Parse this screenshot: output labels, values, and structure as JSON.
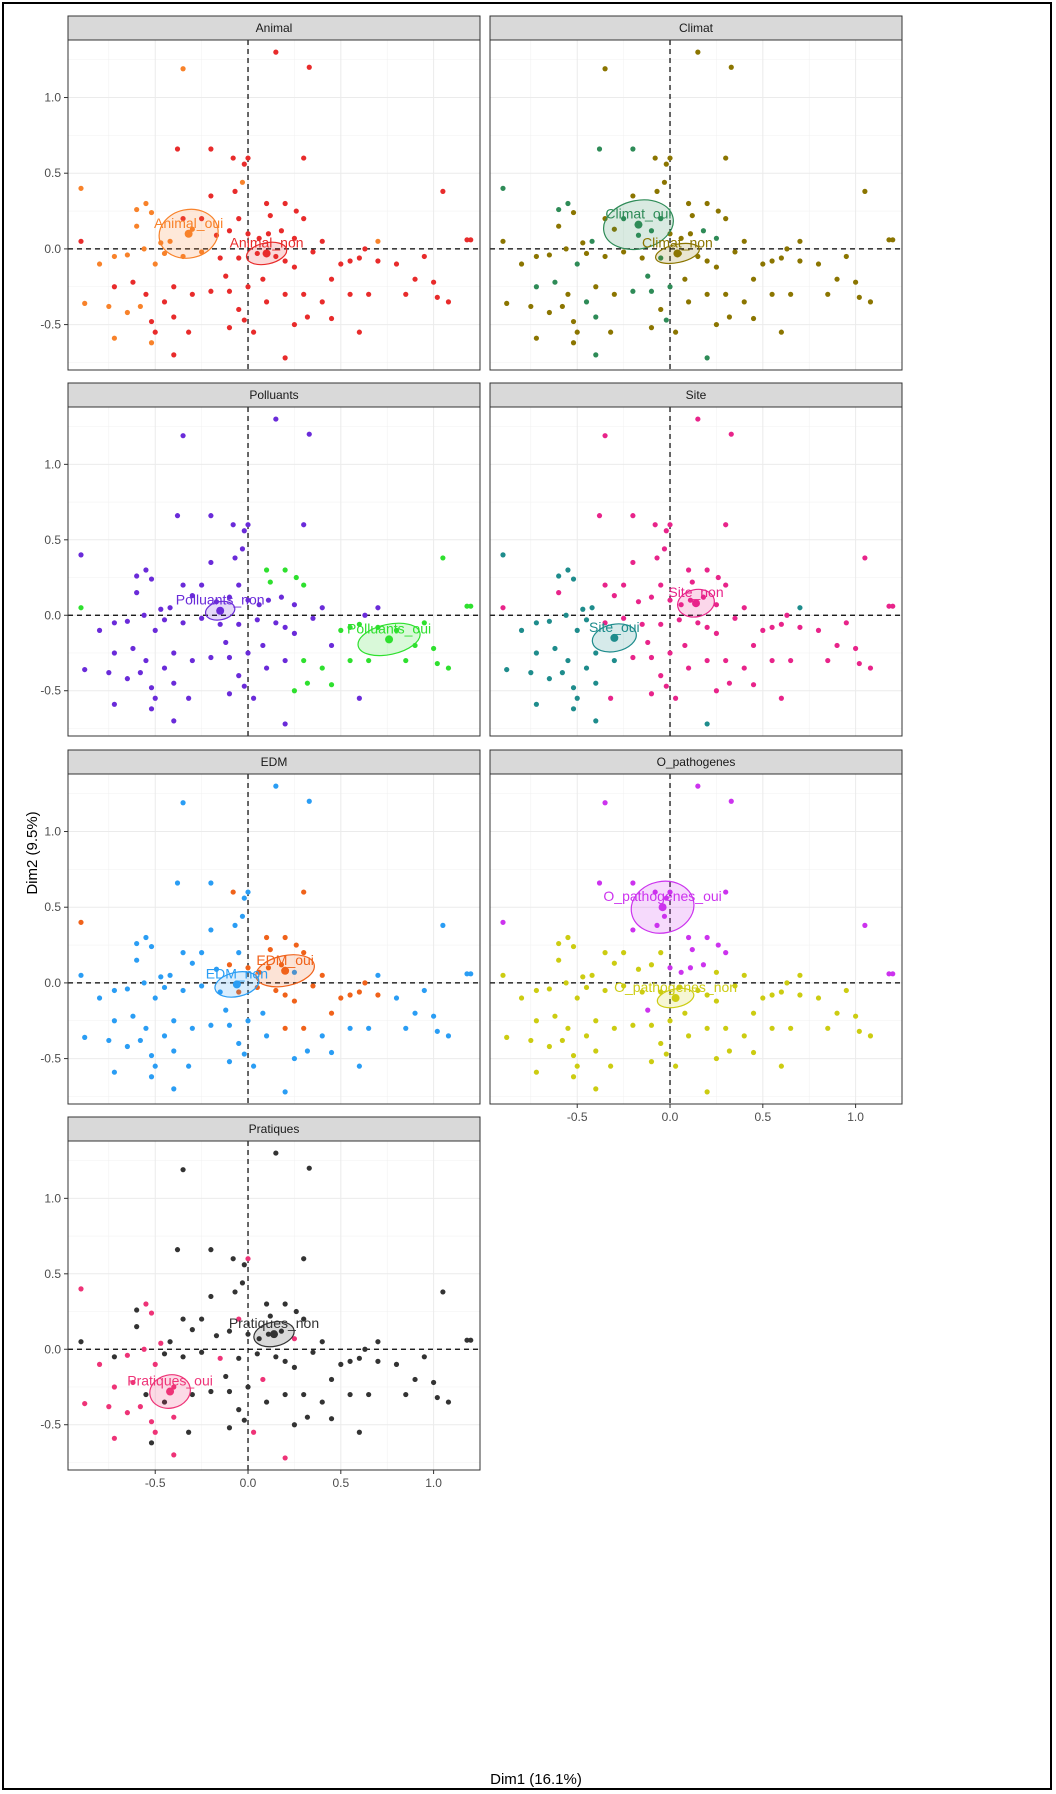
{
  "chart_data": {
    "type": "scatter",
    "xlabel": "Dim1 (16.1%)",
    "ylabel": "Dim2 (9.5%)",
    "xlim": [
      -0.97,
      1.25
    ],
    "ylim": [
      -0.8,
      1.38
    ],
    "x_ticks": [
      -0.5,
      0.0,
      0.5,
      1.0
    ],
    "x_tick_labels": [
      "-0.5",
      "0.0",
      "0.5",
      "1.0"
    ],
    "y_ticks": [
      -0.5,
      0.0,
      0.5,
      1.0
    ],
    "y_tick_labels": [
      "-0.5",
      "0.0",
      "0.5",
      "1.0"
    ],
    "grid": true,
    "reference_lines": {
      "x": 0,
      "y": 0,
      "style": "dashed"
    },
    "points": [
      [
        -0.35,
        1.19
      ],
      [
        0.15,
        1.3
      ],
      [
        0.33,
        1.2
      ],
      [
        -0.9,
        0.4
      ],
      [
        -0.38,
        0.66
      ],
      [
        -0.2,
        0.66
      ],
      [
        -0.08,
        0.6
      ],
      [
        0.3,
        0.6
      ],
      [
        -0.02,
        0.56
      ],
      [
        -0.03,
        0.44
      ],
      [
        -0.55,
        0.3
      ],
      [
        -0.52,
        0.24
      ],
      [
        -0.6,
        0.26
      ],
      [
        -0.3,
        0.13
      ],
      [
        -0.25,
        0.2
      ],
      [
        -0.17,
        0.09
      ],
      [
        -0.1,
        0.12
      ],
      [
        0.0,
        0.1
      ],
      [
        0.06,
        0.07
      ],
      [
        0.11,
        0.1
      ],
      [
        0.18,
        0.12
      ],
      [
        0.3,
        0.2
      ],
      [
        0.2,
        0.3
      ],
      [
        0.12,
        0.22
      ],
      [
        0.26,
        0.25
      ],
      [
        -0.42,
        0.05
      ],
      [
        -0.47,
        0.04
      ],
      [
        -0.56,
        0.0
      ],
      [
        -0.65,
        -0.04
      ],
      [
        -0.72,
        -0.05
      ],
      [
        -0.8,
        -0.1
      ],
      [
        -0.5,
        -0.1
      ],
      [
        -0.45,
        -0.03
      ],
      [
        -0.35,
        -0.05
      ],
      [
        -0.25,
        -0.02
      ],
      [
        -0.15,
        -0.06
      ],
      [
        -0.05,
        -0.06
      ],
      [
        0.05,
        -0.03
      ],
      [
        0.15,
        -0.05
      ],
      [
        0.2,
        -0.08
      ],
      [
        0.25,
        -0.12
      ],
      [
        0.35,
        -0.02
      ],
      [
        0.5,
        -0.1
      ],
      [
        0.55,
        -0.08
      ],
      [
        0.6,
        -0.06
      ],
      [
        0.7,
        -0.08
      ],
      [
        0.8,
        -0.1
      ],
      [
        0.9,
        -0.2
      ],
      [
        1.0,
        -0.22
      ],
      [
        1.05,
        0.38
      ],
      [
        1.18,
        0.06
      ],
      [
        1.2,
        0.06
      ],
      [
        -0.72,
        -0.25
      ],
      [
        -0.62,
        -0.22
      ],
      [
        -0.55,
        -0.3
      ],
      [
        -0.45,
        -0.35
      ],
      [
        -0.4,
        -0.25
      ],
      [
        -0.3,
        -0.3
      ],
      [
        -0.2,
        -0.28
      ],
      [
        -0.1,
        -0.28
      ],
      [
        0.0,
        -0.25
      ],
      [
        0.1,
        -0.35
      ],
      [
        0.2,
        -0.3
      ],
      [
        0.3,
        -0.3
      ],
      [
        0.4,
        -0.35
      ],
      [
        0.55,
        -0.3
      ],
      [
        0.65,
        -0.3
      ],
      [
        0.85,
        -0.3
      ],
      [
        1.02,
        -0.32
      ],
      [
        1.08,
        -0.35
      ],
      [
        -0.88,
        -0.36
      ],
      [
        -0.75,
        -0.38
      ],
      [
        -0.65,
        -0.42
      ],
      [
        -0.58,
        -0.38
      ],
      [
        -0.52,
        -0.48
      ],
      [
        -0.5,
        -0.55
      ],
      [
        -0.4,
        -0.45
      ],
      [
        -0.32,
        -0.55
      ],
      [
        -0.05,
        -0.4
      ],
      [
        -0.02,
        -0.47
      ],
      [
        0.25,
        -0.5
      ],
      [
        0.32,
        -0.45
      ],
      [
        0.45,
        -0.46
      ],
      [
        0.6,
        -0.55
      ],
      [
        -0.72,
        -0.59
      ],
      [
        -0.4,
        -0.7
      ],
      [
        0.2,
        -0.72
      ],
      [
        -0.52,
        -0.62
      ],
      [
        -0.1,
        -0.52
      ],
      [
        0.03,
        -0.55
      ],
      [
        -0.05,
        0.2
      ],
      [
        0.08,
        -0.2
      ],
      [
        0.4,
        0.05
      ],
      [
        0.45,
        -0.2
      ],
      [
        -0.2,
        0.35
      ],
      [
        0.1,
        0.3
      ],
      [
        0.25,
        0.07
      ],
      [
        -0.35,
        0.2
      ],
      [
        -0.12,
        -0.18
      ],
      [
        0.0,
        0.6
      ],
      [
        -0.07,
        0.38
      ],
      [
        0.63,
        0.0
      ],
      [
        -0.9,
        0.05
      ],
      [
        -0.6,
        0.15
      ],
      [
        0.7,
        0.05
      ],
      [
        0.95,
        -0.05
      ]
    ],
    "panels": [
      {
        "name": "Animal",
        "categories": [
          {
            "label": "Animal_oui",
            "color": "#f8822a",
            "center": [
              -0.32,
              0.1
            ],
            "ellipse": [
              0.16,
              0.16
            ],
            "members": [
              0,
              3,
              9,
              10,
              11,
              12,
              13,
              25,
              26,
              27,
              28,
              29,
              30,
              31,
              32,
              33,
              34,
              70,
              71,
              72,
              73,
              84,
              87,
              103,
              104
            ]
          },
          {
            "label": "Animal_non",
            "color": "#e82b2b",
            "center": [
              0.1,
              -0.03
            ],
            "ellipse": [
              0.11,
              0.07
            ],
            "members": "rest"
          }
        ]
      },
      {
        "name": "Climat",
        "categories": [
          {
            "label": "Climat_oui",
            "color": "#2e8b57",
            "center": [
              -0.17,
              0.16
            ],
            "ellipse": [
              0.19,
              0.16
            ],
            "members": [
              3,
              4,
              5,
              10,
              12,
              14,
              15,
              16,
              20,
              25,
              31,
              36,
              52,
              53,
              55,
              58,
              59,
              60,
              76,
              79,
              85,
              86,
              90,
              96,
              98
            ]
          },
          {
            "label": "Climat_non",
            "color": "#8b7500",
            "center": [
              0.04,
              -0.03
            ],
            "ellipse": [
              0.12,
              0.06
            ],
            "members": "rest"
          }
        ]
      },
      {
        "name": "Polluants",
        "categories": [
          {
            "label": "Polluants_oui",
            "color": "#2ee02e",
            "center": [
              0.76,
              -0.16
            ],
            "ellipse": [
              0.17,
              0.1
            ],
            "members": [
              21,
              22,
              23,
              24,
              42,
              43,
              44,
              45,
              46,
              47,
              48,
              49,
              50,
              51,
              63,
              64,
              65,
              66,
              67,
              68,
              69,
              80,
              81,
              82,
              95,
              102,
              105,
              106
            ]
          },
          {
            "label": "Polluants_non",
            "color": "#6a2bd9",
            "center": [
              -0.15,
              0.03
            ],
            "ellipse": [
              0.08,
              0.06
            ],
            "members": "rest"
          }
        ]
      },
      {
        "name": "Site",
        "categories": [
          {
            "label": "Site_oui",
            "color": "#1e8c8c",
            "center": [
              -0.3,
              -0.15
            ],
            "ellipse": [
              0.12,
              0.09
            ],
            "members": [
              3,
              10,
              11,
              12,
              25,
              26,
              27,
              28,
              29,
              30,
              31,
              32,
              52,
              53,
              54,
              55,
              56,
              57,
              70,
              71,
              72,
              73,
              74,
              75,
              76,
              84,
              85,
              86,
              87,
              104
            ]
          },
          {
            "label": "Site_non",
            "color": "#e8248a",
            "center": [
              0.14,
              0.08
            ],
            "ellipse": [
              0.1,
              0.09
            ],
            "members": "rest"
          }
        ]
      },
      {
        "name": "EDM",
        "categories": [
          {
            "label": "EDM_oui",
            "color": "#f0621a",
            "center": [
              0.2,
              0.08
            ],
            "ellipse": [
              0.16,
              0.1
            ],
            "members": [
              3,
              6,
              7,
              16,
              17,
              18,
              19,
              20,
              21,
              22,
              23,
              24,
              36,
              37,
              38,
              39,
              40,
              41,
              42,
              43,
              44,
              45,
              62,
              63,
              92,
              93,
              95,
              101
            ]
          },
          {
            "label": "EDM_non",
            "color": "#2a9df4",
            "center": [
              -0.06,
              -0.01
            ],
            "ellipse": [
              0.12,
              0.08
            ],
            "members": "rest"
          }
        ]
      },
      {
        "name": "O_pathogenes",
        "categories": [
          {
            "label": "O_pathogenes_oui",
            "color": "#cc33ee",
            "center": [
              -0.04,
              0.5
            ],
            "ellipse": [
              0.17,
              0.17
            ],
            "members": [
              0,
              1,
              2,
              3,
              4,
              5,
              6,
              7,
              8,
              9,
              17,
              18,
              19,
              20,
              21,
              22,
              23,
              24,
              49,
              50,
              51,
              94,
              95,
              98,
              99,
              100
            ]
          },
          {
            "label": "O_pathogenes_non",
            "color": "#cccc11",
            "center": [
              0.03,
              -0.1
            ],
            "ellipse": [
              0.1,
              0.06
            ],
            "members": "rest"
          }
        ]
      },
      {
        "name": "Pratiques",
        "categories": [
          {
            "label": "Pratiques_oui",
            "color": "#ee3377",
            "center": [
              -0.42,
              -0.28
            ],
            "ellipse": [
              0.11,
              0.11
            ],
            "members": [
              3,
              10,
              11,
              26,
              27,
              28,
              30,
              31,
              35,
              52,
              53,
              56,
              70,
              71,
              72,
              73,
              74,
              75,
              76,
              84,
              85,
              86,
              89,
              90,
              91,
              96,
              99
            ]
          },
          {
            "label": "Pratiques_non",
            "color": "#333333",
            "center": [
              0.14,
              0.1
            ],
            "ellipse": [
              0.11,
              0.08
            ],
            "members": "rest"
          }
        ]
      }
    ]
  }
}
